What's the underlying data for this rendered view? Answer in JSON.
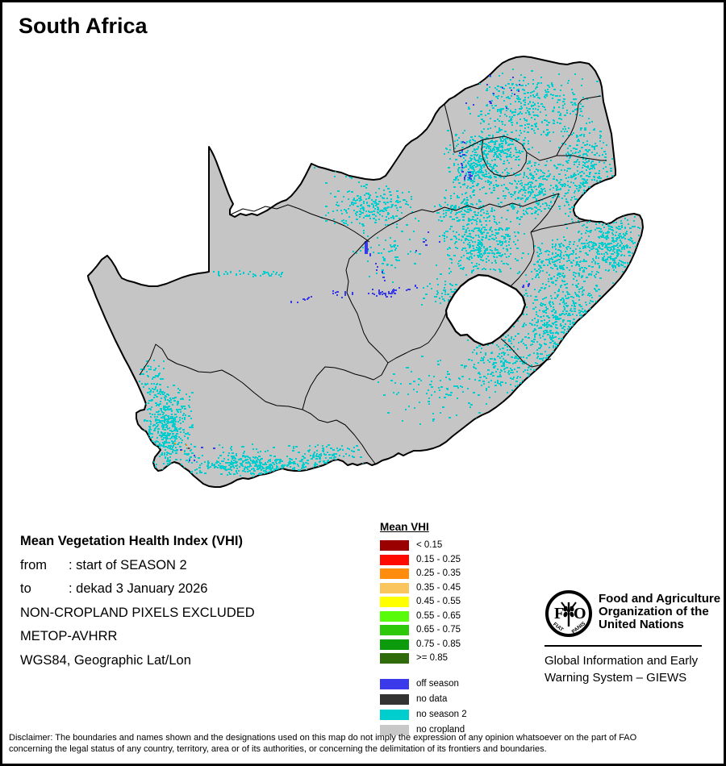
{
  "title": "South Africa",
  "info": {
    "rows": [
      {
        "label": "",
        "text": "Mean Vegetation Health Index (VHI)"
      },
      {
        "label": "from",
        "text": ": start of SEASON 2"
      },
      {
        "label": "to",
        "text": ": dekad 3 January 2026"
      },
      {
        "label": "",
        "text": "NON-CROPLAND PIXELS EXCLUDED"
      },
      {
        "label": "",
        "text": "METOP-AVHRR"
      },
      {
        "label": "",
        "text": "WGS84, Geographic Lat/Lon"
      }
    ]
  },
  "legend": {
    "title": "Mean VHI",
    "classes": [
      {
        "label": "< 0.15",
        "color": "#9B0000"
      },
      {
        "label": "0.15 - 0.25",
        "color": "#FF0A00"
      },
      {
        "label": "0.25 - 0.35",
        "color": "#FF8C0C"
      },
      {
        "label": "0.35 - 0.45",
        "color": "#FBC55E"
      },
      {
        "label": "0.45 - 0.55",
        "color": "#FFFF00"
      },
      {
        "label": "0.55 - 0.65",
        "color": "#58FB0A"
      },
      {
        "label": "0.65 - 0.75",
        "color": "#2DC80A"
      },
      {
        "label": "0.75 - 0.85",
        "color": "#0C9B0C"
      },
      {
        "label": ">= 0.85",
        "color": "#2F6B0A"
      }
    ],
    "extra": [
      {
        "label": "off season",
        "color": "#3A3AEB"
      },
      {
        "label": "no data",
        "color": "#333333"
      },
      {
        "label": "no season 2",
        "color": "#00CDCD"
      },
      {
        "label": "no cropland",
        "color": "#C8C8C8"
      }
    ]
  },
  "map": {
    "colors": {
      "land": "#C5C5C5",
      "border": "#000000",
      "enclave": "#FFFFFF",
      "no_season2": "#00CDCD",
      "off_season": "#3A3AEB"
    }
  },
  "org": {
    "logo_text_f": "F",
    "logo_text_o": "O",
    "logo_motto_left": "FIAT",
    "logo_motto_right": "PANIS",
    "name_lines": [
      "Food and Agriculture",
      "Organization of the",
      "United Nations"
    ],
    "subtitle_lines": [
      "Global Information and Early",
      "Warning System – GIEWS"
    ]
  },
  "footer": {
    "lines": [
      "Disclaimer: The boundaries and names shown and the designations used on this map do not imply the expression of any opinion whatsoever on the part of FAO",
      "concerning the legal status of any country, territory, area or of its authorities, or concerning the delimitation of its frontiers and boundaries."
    ]
  }
}
